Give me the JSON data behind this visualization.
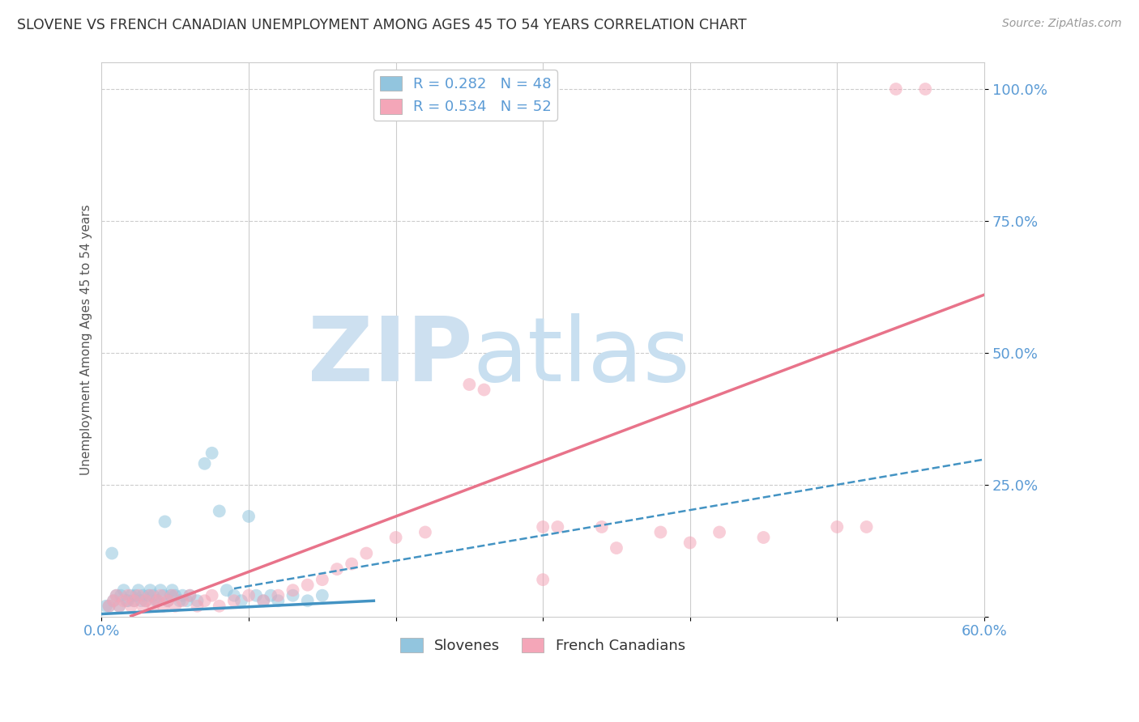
{
  "title": "SLOVENE VS FRENCH CANADIAN UNEMPLOYMENT AMONG AGES 45 TO 54 YEARS CORRELATION CHART",
  "source": "Source: ZipAtlas.com",
  "ylabel": "Unemployment Among Ages 45 to 54 years",
  "xlim": [
    0.0,
    0.6
  ],
  "ylim": [
    0.0,
    1.05
  ],
  "xticks": [
    0.0,
    0.1,
    0.2,
    0.3,
    0.4,
    0.5,
    0.6
  ],
  "yticks": [
    0.0,
    0.25,
    0.5,
    0.75,
    1.0
  ],
  "ytick_labels": [
    "",
    "25.0%",
    "50.0%",
    "75.0%",
    "100.0%"
  ],
  "slovene_R": 0.282,
  "slovene_N": 48,
  "french_R": 0.534,
  "french_N": 52,
  "slovene_color": "#92c5de",
  "french_color": "#f4a6b8",
  "slovene_line_color": "#4393c3",
  "french_line_color": "#e8738a",
  "tick_color": "#5b9bd5",
  "grid_color": "#cccccc",
  "background_color": "#ffffff",
  "zip_color": "#cde0f0",
  "atlas_color": "#c8dff0",
  "slovene_line_intercept": 0.005,
  "slovene_line_slope": 0.135,
  "french_line_intercept": -0.02,
  "french_line_slope": 1.05,
  "slovene_dashed_intercept": 0.01,
  "slovene_dashed_slope": 0.48,
  "slovene_x": [
    0.005,
    0.008,
    0.01,
    0.012,
    0.015,
    0.018,
    0.02,
    0.022,
    0.025,
    0.028,
    0.03,
    0.033,
    0.035,
    0.038,
    0.04,
    0.042,
    0.045,
    0.048,
    0.05,
    0.053,
    0.055,
    0.058,
    0.06,
    0.065,
    0.07,
    0.075,
    0.08,
    0.085,
    0.09,
    0.095,
    0.1,
    0.105,
    0.11,
    0.115,
    0.12,
    0.13,
    0.14,
    0.15,
    0.003,
    0.007,
    0.013,
    0.017,
    0.023,
    0.027,
    0.032,
    0.037,
    0.043,
    0.047
  ],
  "slovene_y": [
    0.02,
    0.03,
    0.04,
    0.02,
    0.05,
    0.03,
    0.04,
    0.03,
    0.05,
    0.04,
    0.03,
    0.05,
    0.04,
    0.03,
    0.05,
    0.04,
    0.03,
    0.05,
    0.04,
    0.03,
    0.04,
    0.03,
    0.04,
    0.03,
    0.29,
    0.31,
    0.2,
    0.05,
    0.04,
    0.03,
    0.19,
    0.04,
    0.03,
    0.04,
    0.03,
    0.04,
    0.03,
    0.04,
    0.02,
    0.12,
    0.04,
    0.03,
    0.04,
    0.03,
    0.04,
    0.03,
    0.18,
    0.04
  ],
  "french_x": [
    0.005,
    0.008,
    0.01,
    0.012,
    0.015,
    0.018,
    0.02,
    0.022,
    0.025,
    0.028,
    0.03,
    0.033,
    0.035,
    0.038,
    0.04,
    0.042,
    0.045,
    0.048,
    0.05,
    0.055,
    0.06,
    0.065,
    0.07,
    0.075,
    0.08,
    0.09,
    0.1,
    0.11,
    0.12,
    0.13,
    0.14,
    0.15,
    0.16,
    0.17,
    0.18,
    0.2,
    0.22,
    0.25,
    0.3,
    0.35,
    0.4,
    0.45,
    0.5,
    0.52,
    0.54,
    0.56,
    0.38,
    0.42,
    0.3,
    0.31,
    0.34,
    0.26
  ],
  "french_y": [
    0.02,
    0.03,
    0.04,
    0.02,
    0.03,
    0.04,
    0.02,
    0.03,
    0.04,
    0.02,
    0.03,
    0.04,
    0.02,
    0.03,
    0.04,
    0.02,
    0.03,
    0.04,
    0.02,
    0.03,
    0.04,
    0.02,
    0.03,
    0.04,
    0.02,
    0.03,
    0.04,
    0.03,
    0.04,
    0.05,
    0.06,
    0.07,
    0.09,
    0.1,
    0.12,
    0.15,
    0.16,
    0.44,
    0.07,
    0.13,
    0.14,
    0.15,
    0.17,
    0.17,
    1.0,
    1.0,
    0.16,
    0.16,
    0.17,
    0.17,
    0.17,
    0.43
  ]
}
